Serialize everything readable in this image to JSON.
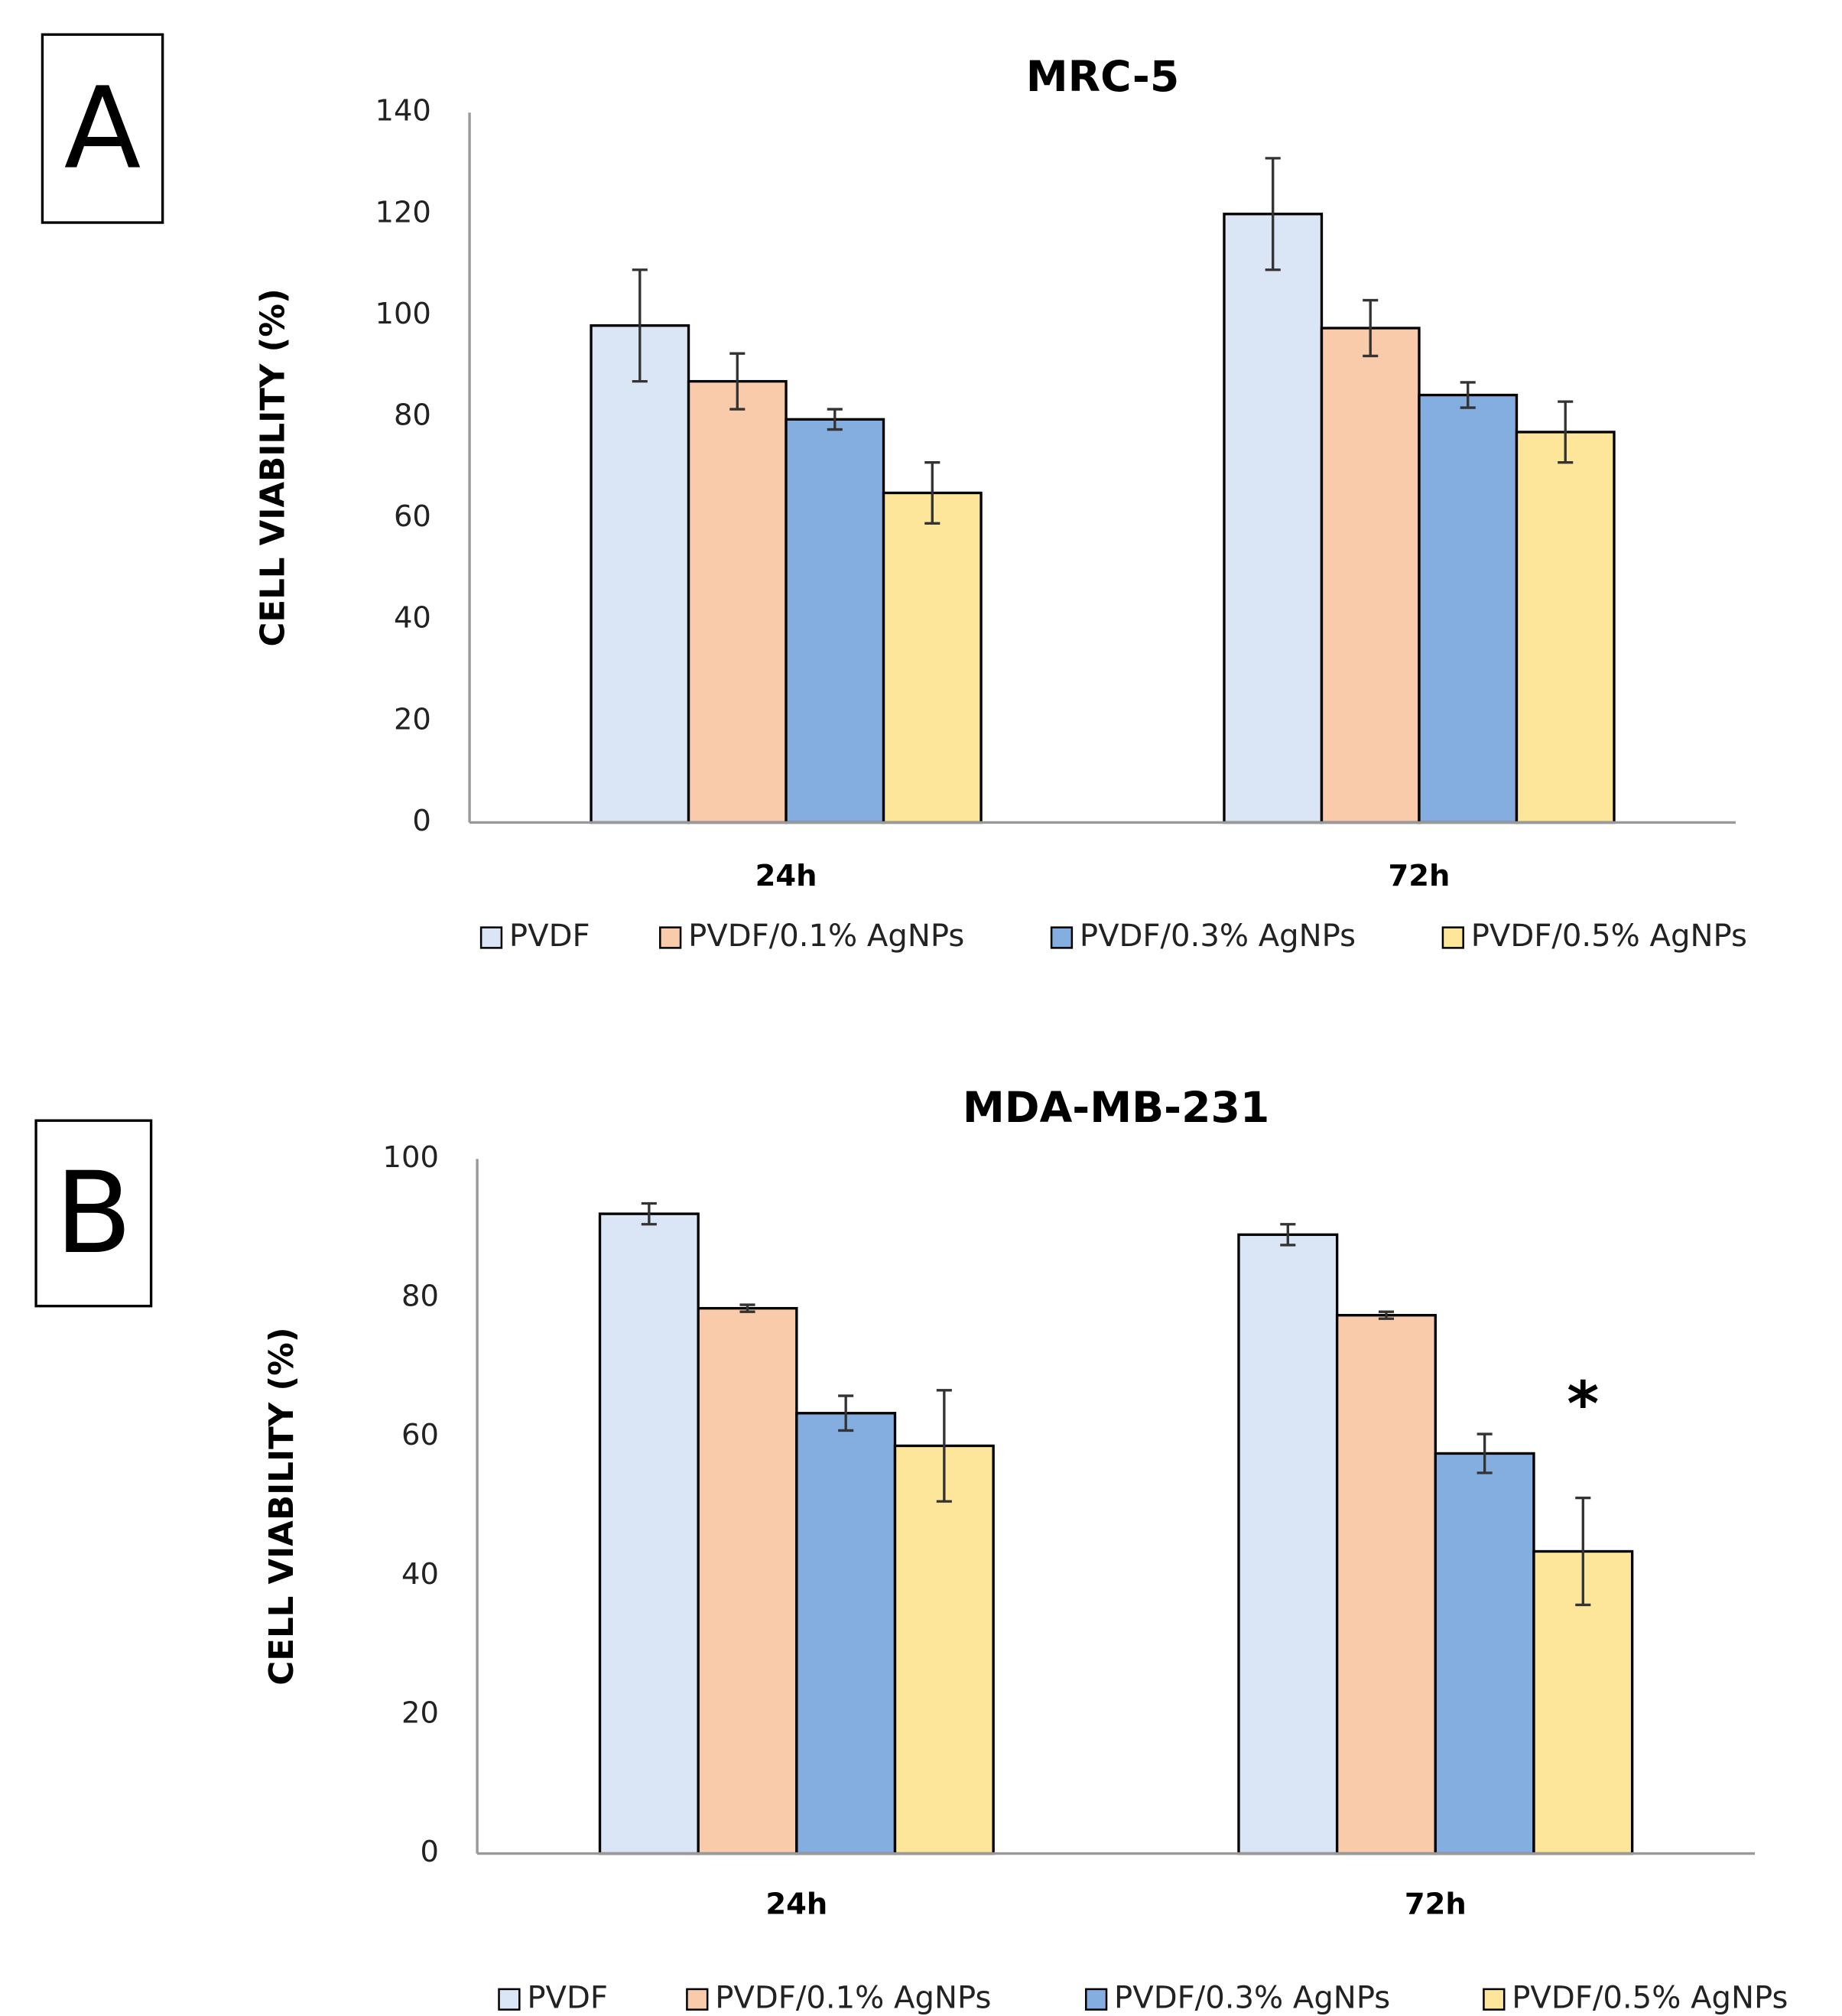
{
  "chart_data": [
    {
      "type": "bar",
      "panel_label": "A",
      "title": "MRC-5",
      "y_label": "CELL VIABILITY (%)",
      "categories": [
        "24h",
        "72h"
      ],
      "series": [
        {
          "name": "PVDF",
          "color": "#dae6f5",
          "values": [
            98,
            120
          ],
          "errors": [
            11,
            11
          ]
        },
        {
          "name": "PVDF/0.1% AgNPs",
          "color": "#f9cbab",
          "values": [
            87,
            97.5
          ],
          "errors": [
            5.5,
            5.5
          ]
        },
        {
          "name": "PVDF/0.3% AgNPs",
          "color": "#84ade0",
          "values": [
            79.5,
            84.3
          ],
          "errors": [
            2,
            2.5
          ]
        },
        {
          "name": "PVDF/0.5% AgNPs",
          "color": "#fde699",
          "values": [
            65,
            77
          ],
          "errors": [
            6,
            6
          ]
        }
      ],
      "ylim": [
        0,
        140
      ],
      "yticks": [
        0,
        20,
        40,
        60,
        80,
        100,
        120,
        140
      ],
      "grid": false,
      "legend": "bottom"
    },
    {
      "type": "bar",
      "panel_label": "B",
      "title": "MDA-MB-231",
      "y_label": "CELL VIABILITY (%)",
      "categories": [
        "24h",
        "72h"
      ],
      "series": [
        {
          "name": "PVDF",
          "color": "#dae6f5",
          "values": [
            92.1,
            89.1
          ],
          "errors": [
            1.5,
            1.5
          ]
        },
        {
          "name": "PVDF/0.1% AgNPs",
          "color": "#f9cbab",
          "values": [
            78.5,
            77.5
          ],
          "errors": [
            0.5,
            0.5
          ]
        },
        {
          "name": "PVDF/0.3% AgNPs",
          "color": "#84ade0",
          "values": [
            63.4,
            57.6
          ],
          "errors": [
            2.5,
            2.8
          ]
        },
        {
          "name": "PVDF/0.5% AgNPs",
          "color": "#fde699",
          "values": [
            58.7,
            43.5
          ],
          "errors": [
            8,
            7.7
          ]
        }
      ],
      "ylim": [
        0,
        100
      ],
      "yticks": [
        0,
        20,
        40,
        60,
        80,
        100
      ],
      "grid": false,
      "legend": "bottom",
      "annotations": [
        {
          "text": "*",
          "category": "72h",
          "series": "PVDF/0.5% AgNPs"
        }
      ]
    }
  ]
}
